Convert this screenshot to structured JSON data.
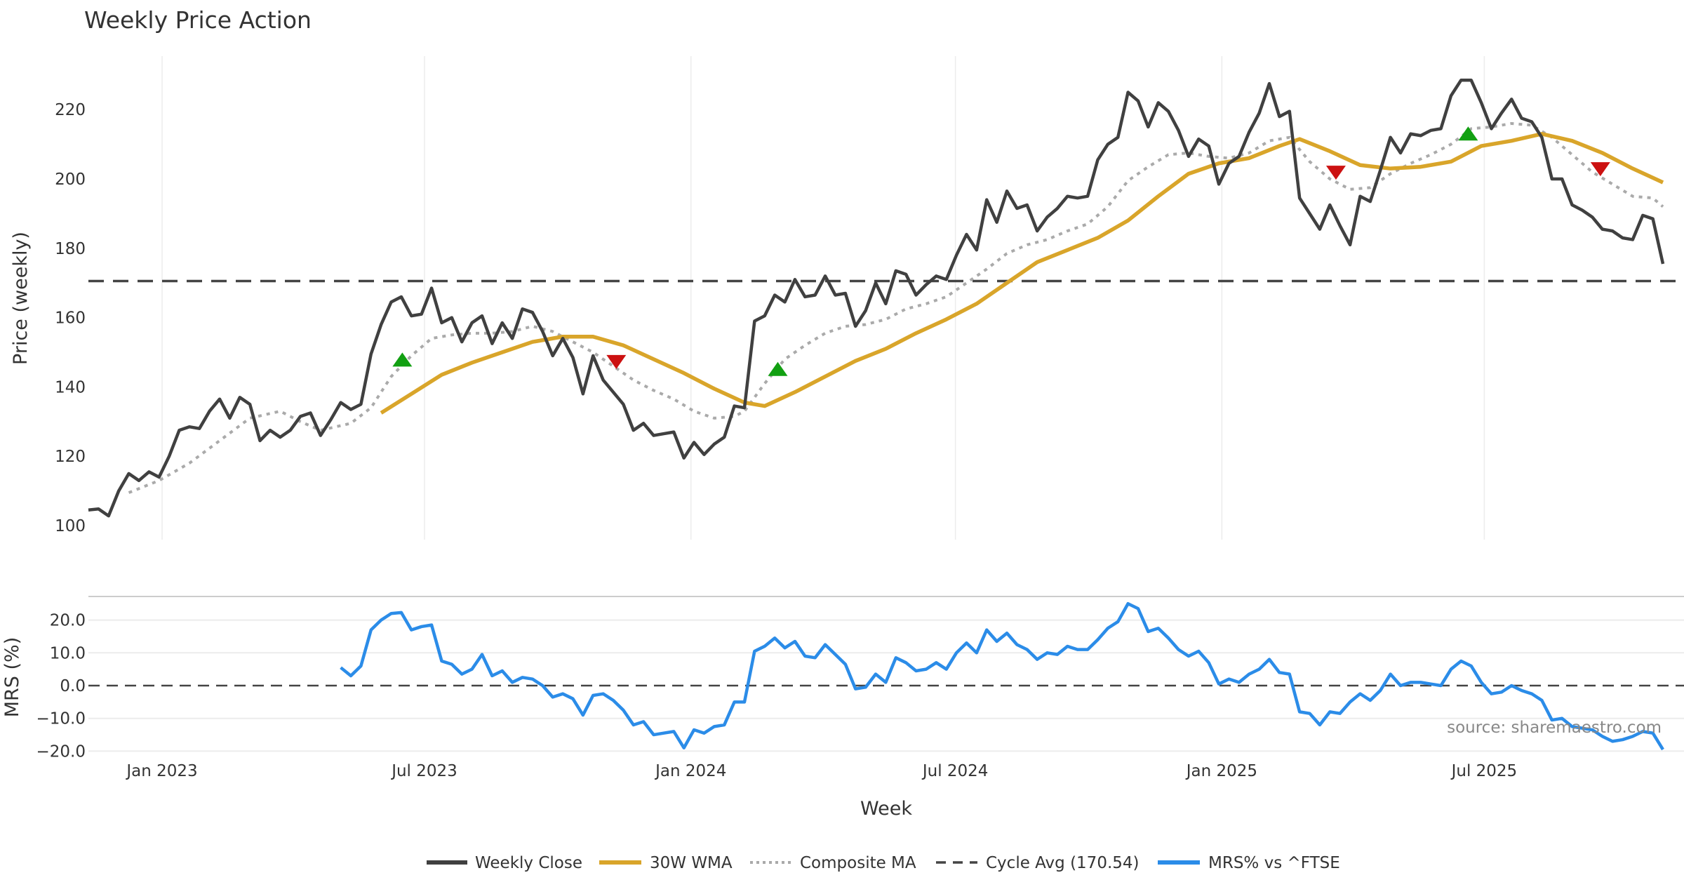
{
  "chart_data": [
    {
      "type": "line",
      "title": "Weekly Price Action",
      "xlabel": "Week",
      "ylabel": "Price (weekly)",
      "ylim": [
        97,
        236
      ],
      "yticks": [
        100,
        120,
        140,
        160,
        180,
        200,
        220
      ],
      "xticks": [
        {
          "week": 7.3,
          "label": "Jan 2023"
        },
        {
          "week": 33.3,
          "label": "Jul 2023"
        },
        {
          "week": 59.7,
          "label": "Jan 2024"
        },
        {
          "week": 85.9,
          "label": "Jul 2024"
        },
        {
          "week": 112.3,
          "label": "Jan 2025"
        },
        {
          "week": 138.3,
          "label": "Jul 2025"
        }
      ],
      "grid": "vertical",
      "series": [
        {
          "name": "Weekly Close",
          "color": "#404040",
          "style": "solid",
          "values": [
            104.5,
            104.8,
            102.8,
            110,
            115,
            113,
            115.5,
            114,
            120,
            127.5,
            128.5,
            128,
            133,
            136.5,
            131,
            137,
            135,
            124.5,
            127.5,
            125.5,
            127.5,
            131.5,
            132.5,
            126,
            130.5,
            135.5,
            133.5,
            135,
            149.5,
            158,
            164.5,
            166,
            160.5,
            161,
            168.5,
            158.5,
            160,
            153,
            158.5,
            160.5,
            152.5,
            158.5,
            154,
            162.5,
            161.5,
            156,
            149,
            154,
            148.5,
            138,
            149,
            142,
            138.5,
            135,
            127.5,
            129.5,
            126,
            126.5,
            127,
            119.5,
            124,
            120.5,
            123.5,
            125.5,
            134.5,
            134,
            159,
            160.5,
            166.5,
            164.5,
            171,
            166,
            166.5,
            172,
            166.5,
            167,
            157.5,
            162,
            170,
            164,
            173.5,
            172.5,
            166.5,
            169.5,
            172,
            171,
            178,
            184,
            179.5,
            194,
            187.5,
            196.5,
            191.5,
            192.5,
            185,
            189,
            191.5,
            195,
            194.5,
            195,
            205.5,
            210,
            212,
            225,
            222.5,
            215,
            222,
            219.5,
            214,
            206.5,
            211.5,
            209.5,
            198.5,
            204.5,
            206.5,
            213.5,
            219,
            227.5,
            218,
            219.5,
            194.5,
            190,
            185.5,
            192.5,
            186.5,
            181,
            195,
            193.5,
            202.5,
            212,
            207.5,
            213,
            212.5,
            214,
            214.5,
            224,
            228.5,
            228.5,
            222,
            214.5,
            219,
            223,
            217.5,
            216.5,
            212,
            200,
            200,
            192.5,
            191,
            189,
            185.5,
            185,
            183,
            182.5,
            189.5,
            188.5,
            175.5
          ]
        },
        {
          "name": "30W WMA",
          "color": "#D9A52A",
          "style": "solid",
          "points": [
            [
              29,
              132.5
            ],
            [
              32,
              138
            ],
            [
              35,
              143.5
            ],
            [
              38,
              147
            ],
            [
              41,
              150
            ],
            [
              44,
              153
            ],
            [
              47,
              154.5
            ],
            [
              50,
              154.5
            ],
            [
              53,
              152
            ],
            [
              56,
              148
            ],
            [
              59,
              144
            ],
            [
              62,
              139.5
            ],
            [
              65,
              135.5
            ],
            [
              67,
              134.5
            ],
            [
              70,
              138.5
            ],
            [
              73,
              143
            ],
            [
              76,
              147.5
            ],
            [
              79,
              151
            ],
            [
              82,
              155.5
            ],
            [
              85,
              159.5
            ],
            [
              88,
              164
            ],
            [
              91,
              170
            ],
            [
              94,
              176
            ],
            [
              97,
              179.5
            ],
            [
              100,
              183
            ],
            [
              103,
              188
            ],
            [
              106,
              195
            ],
            [
              109,
              201.5
            ],
            [
              112,
              204.5
            ],
            [
              115,
              206
            ],
            [
              118,
              209.5
            ],
            [
              120,
              211.5
            ],
            [
              123,
              208
            ],
            [
              126,
              204
            ],
            [
              129,
              203
            ],
            [
              132,
              203.5
            ],
            [
              135,
              205
            ],
            [
              138,
              209.5
            ],
            [
              141,
              211
            ],
            [
              144,
              213
            ],
            [
              147,
              211
            ],
            [
              150,
              207.5
            ],
            [
              153,
              203
            ],
            [
              156,
              199
            ]
          ]
        },
        {
          "name": "Composite MA",
          "color": "#AAAAAA",
          "style": "dotted",
          "points": [
            [
              4,
              109.5
            ],
            [
              7,
              113
            ],
            [
              10,
              118
            ],
            [
              13,
              124.5
            ],
            [
              16,
              131
            ],
            [
              19,
              133
            ],
            [
              21,
              130
            ],
            [
              23,
              127.5
            ],
            [
              26,
              129.5
            ],
            [
              28,
              134
            ],
            [
              30,
              143
            ],
            [
              32,
              149
            ],
            [
              34,
              154
            ],
            [
              36,
              155
            ],
            [
              38,
              155.5
            ],
            [
              40,
              155.5
            ],
            [
              42,
              156
            ],
            [
              44,
              157.5
            ],
            [
              46,
              156
            ],
            [
              48,
              153
            ],
            [
              50,
              150
            ],
            [
              52,
              146
            ],
            [
              54,
              142
            ],
            [
              56,
              139
            ],
            [
              58,
              136.5
            ],
            [
              60,
              133
            ],
            [
              62,
              131
            ],
            [
              64,
              131.5
            ],
            [
              65,
              133
            ],
            [
              67,
              141
            ],
            [
              69,
              148
            ],
            [
              71,
              152
            ],
            [
              73,
              155.5
            ],
            [
              75,
              157.5
            ],
            [
              77,
              158
            ],
            [
              79,
              159.5
            ],
            [
              81,
              162.5
            ],
            [
              83,
              164
            ],
            [
              85,
              166
            ],
            [
              87,
              170
            ],
            [
              89,
              174
            ],
            [
              91,
              178.5
            ],
            [
              93,
              181
            ],
            [
              95,
              182.5
            ],
            [
              97,
              185
            ],
            [
              99,
              187
            ],
            [
              101,
              192
            ],
            [
              103,
              199.5
            ],
            [
              105,
              203.5
            ],
            [
              107,
              207
            ],
            [
              109,
              207.5
            ],
            [
              111,
              206.5
            ],
            [
              113,
              206
            ],
            [
              115,
              207.5
            ],
            [
              117,
              211
            ],
            [
              119,
              212
            ],
            [
              121,
              205
            ],
            [
              123,
              200
            ],
            [
              125,
              197
            ],
            [
              127,
              197.5
            ],
            [
              129,
              201.5
            ],
            [
              131,
              204.5
            ],
            [
              133,
              207
            ],
            [
              135,
              210
            ],
            [
              137,
              214.5
            ],
            [
              139,
              215
            ],
            [
              141,
              216
            ],
            [
              143,
              215.5
            ],
            [
              145,
              212
            ],
            [
              147,
              207
            ],
            [
              149,
              202
            ],
            [
              151,
              198.5
            ],
            [
              153,
              195
            ],
            [
              155,
              194.5
            ],
            [
              156,
              192
            ]
          ]
        },
        {
          "name": "Cycle Avg (170.54)",
          "color": "#444444",
          "style": "dashed",
          "value": 170.54
        }
      ],
      "signals": {
        "buy": [
          [
            31.1,
            147.7
          ],
          [
            68.3,
            145
          ],
          [
            136.7,
            212.9
          ]
        ],
        "sell": [
          [
            52.3,
            147.4
          ],
          [
            123.6,
            202
          ],
          [
            149.8,
            203
          ]
        ],
        "buy_color": "#12A012",
        "sell_color": "#CC1111"
      }
    },
    {
      "type": "line",
      "ylabel": "MRS (%)",
      "ylim": [
        -22,
        27
      ],
      "yticks": [
        20.0,
        10.0,
        0.0,
        -10.0,
        -20.0
      ],
      "ytick_labels": [
        "20.0",
        "10.0",
        "0.0",
        "−10.0",
        "−20.0"
      ],
      "grid": "horizontal",
      "zero_line": 0,
      "series": [
        {
          "name": "MRS% vs ^FTSE",
          "color": "#2B8CE8",
          "start_week": 25,
          "values": [
            5.5,
            3,
            6,
            17,
            20,
            22,
            22.3,
            17,
            18,
            18.5,
            7.5,
            6.5,
            3.5,
            5,
            9.5,
            3,
            4.5,
            1,
            2.5,
            2,
            0,
            -3.5,
            -2.5,
            -4,
            -9,
            -3,
            -2.5,
            -4.5,
            -7.5,
            -12,
            -11,
            -15,
            -14.5,
            -14,
            -19,
            -13.5,
            -14.5,
            -12.5,
            -12,
            -5,
            -5,
            10.5,
            12,
            14.5,
            11.5,
            13.5,
            9,
            8.5,
            12.5,
            9.5,
            6.5,
            -1,
            -0.5,
            3.5,
            1,
            8.5,
            7,
            4.5,
            5,
            7,
            5,
            10,
            13,
            10,
            17,
            13.5,
            16,
            12.5,
            11,
            8,
            10,
            9.5,
            12,
            11,
            11,
            14,
            17.5,
            19.5,
            25,
            23.5,
            16.5,
            17.5,
            14.5,
            11,
            9,
            10.5,
            7,
            0.5,
            2,
            1,
            3.5,
            5,
            8,
            4,
            3.5,
            -8,
            -8.5,
            -12,
            -8,
            -8.5,
            -5,
            -2.5,
            -4.5,
            -1.5,
            3.5,
            0,
            1,
            1,
            0.5,
            0,
            5,
            7.5,
            6,
            1,
            -2.5,
            -2,
            0,
            -1.5,
            -2.5,
            -4.5,
            -10.5,
            -10,
            -12.5,
            -13,
            -13.5,
            -15.5,
            -17,
            -16.5,
            -15.5,
            -14,
            -14.5,
            -19.5
          ]
        }
      ],
      "annotation": "source: sharemaestro.com"
    }
  ],
  "legend": {
    "placement": "bottom-center",
    "items": [
      "Weekly Close",
      "30W WMA",
      "Composite MA",
      "Cycle Avg (170.54)",
      "MRS% vs ^FTSE"
    ]
  }
}
